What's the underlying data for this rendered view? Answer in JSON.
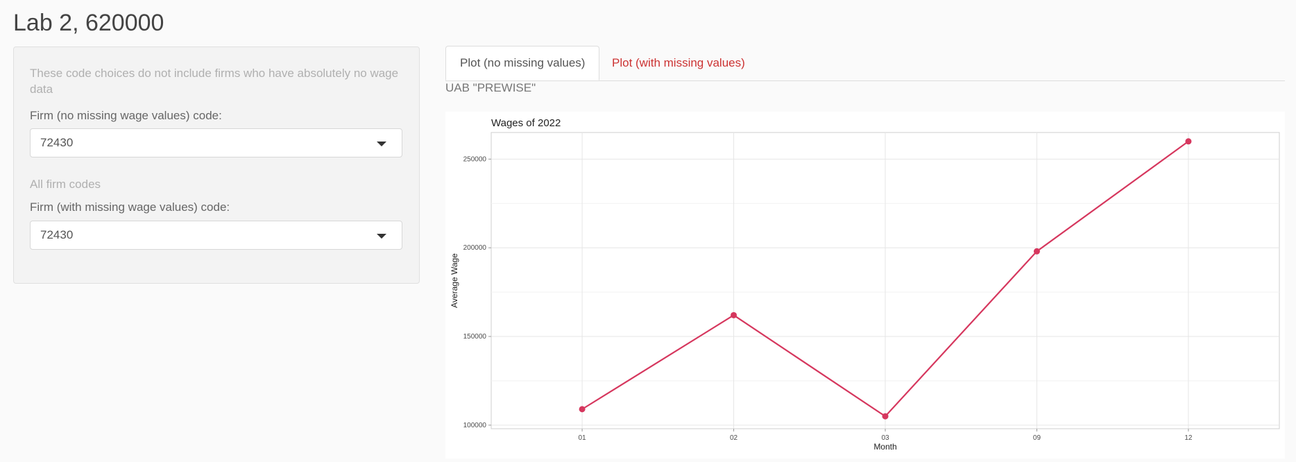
{
  "page": {
    "title": "Lab 2, 620000"
  },
  "sidebar": {
    "help_no_missing": "These code choices do not include firms who have absolutely no wage data",
    "label_no_missing": "Firm (no missing wage values) code:",
    "select_no_missing_value": "72430",
    "help_all": "All firm codes",
    "label_with_missing": "Firm (with missing wage values) code:",
    "select_with_missing_value": "72430"
  },
  "tabs": [
    {
      "label": "Plot (no missing values)",
      "active": true
    },
    {
      "label": "Plot (with missing values)",
      "active": false
    }
  ],
  "main": {
    "firm_name": "UAB \"PREWISE\""
  },
  "colors": {
    "line": "#d6375e",
    "link": "#cc3333"
  },
  "chart_data": {
    "type": "line",
    "title": "Wages of 2022",
    "xlabel": "Month",
    "ylabel": "Average Wage",
    "categories": [
      "01",
      "02",
      "03",
      "09",
      "12"
    ],
    "values": [
      109000,
      162000,
      105000,
      198000,
      260000
    ],
    "ylim": [
      98000,
      265000
    ],
    "yticks": [
      100000,
      150000,
      200000,
      250000
    ],
    "ytick_labels": [
      "100000",
      "150000",
      "200000",
      "250000"
    ],
    "grid": true
  }
}
